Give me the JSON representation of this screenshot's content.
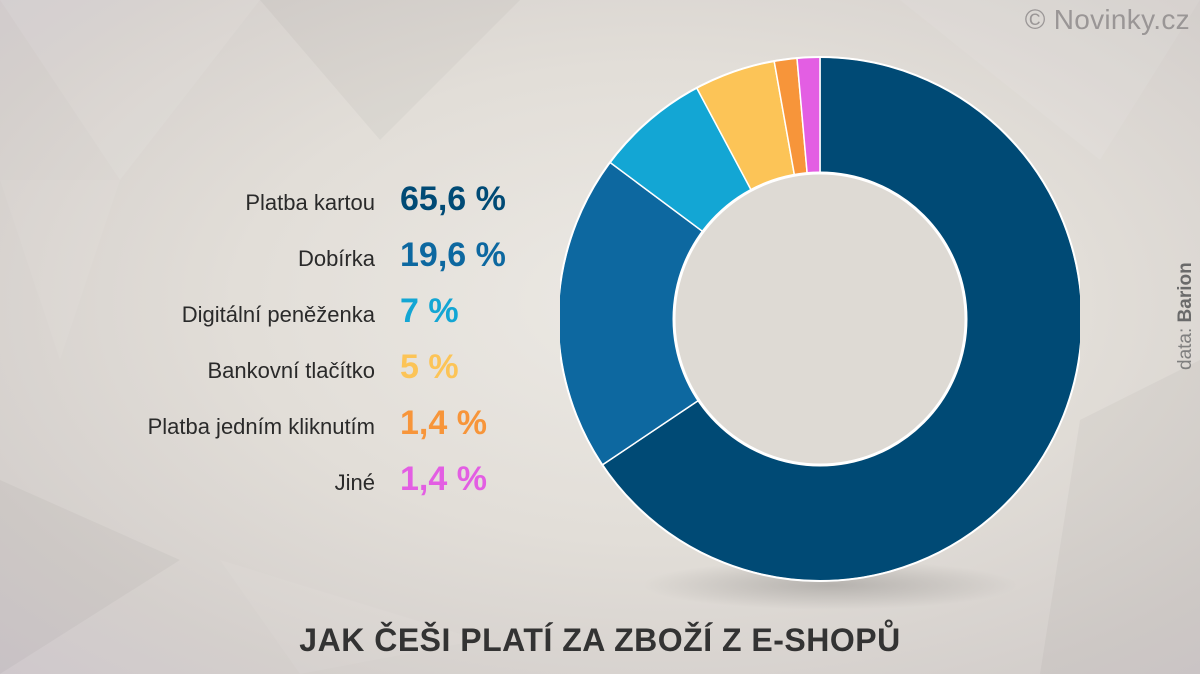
{
  "header": {
    "credit": "© Novinky.cz"
  },
  "source": {
    "prefix": "data:",
    "name": "Barion"
  },
  "colors": {
    "card": "#004a75",
    "cod": "#0d68a0",
    "wallet": "#13a6d4",
    "bank": "#fcc457",
    "oneclick": "#f7953a",
    "other": "#e35ee3",
    "hole": "#dedad4"
  },
  "chart_data": {
    "type": "pie",
    "title": "JAK ČEŠI PLATÍ ZA ZBOŽÍ Z E-SHOPŮ",
    "slices": [
      {
        "label": "Platba kartou",
        "value": 65.6,
        "display": "65,6 %",
        "color": "#004a75"
      },
      {
        "label": "Dobírka",
        "value": 19.6,
        "display": "19,6 %",
        "color": "#0d68a0"
      },
      {
        "label": "Digitální peněženka",
        "value": 7,
        "display": "7 %",
        "color": "#13a6d4"
      },
      {
        "label": "Bankovní tlačítko",
        "value": 5,
        "display": "5 %",
        "color": "#fcc457"
      },
      {
        "label": "Platba jedním kliknutím",
        "value": 1.4,
        "display": "1,4 %",
        "color": "#f7953a"
      },
      {
        "label": "Jiné",
        "value": 1.4,
        "display": "1,4 %",
        "color": "#e35ee3"
      }
    ]
  }
}
